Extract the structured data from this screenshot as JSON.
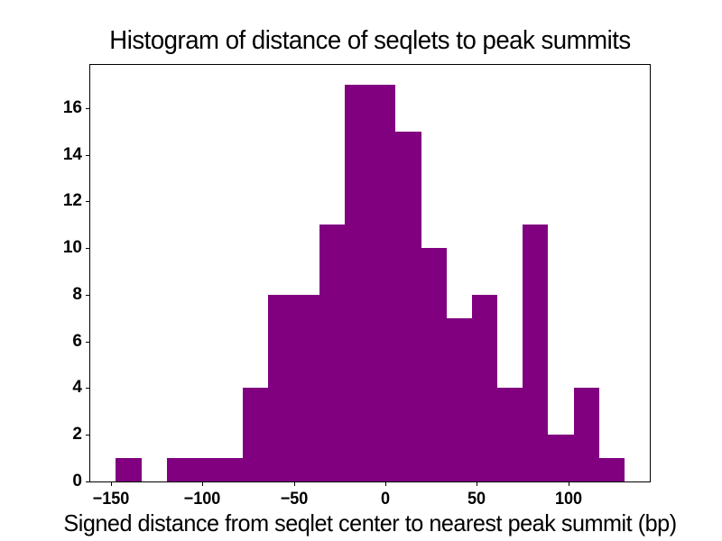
{
  "chart_data": {
    "type": "bar",
    "variant": "histogram",
    "title": "Histogram of distance of seqlets to peak summits",
    "xlabel": "Signed distance from seqlet center to nearest peak summit (bp)",
    "ylabel": "",
    "bar_color": "#800080",
    "axis_color": "#000000",
    "text_color": "#000000",
    "background_color": "#ffffff",
    "grid": false,
    "legend": false,
    "bin_edges": [
      -147.3,
      -133.4,
      -119.5,
      -105.6,
      -91.7,
      -77.8,
      -63.9,
      -50.0,
      -36.1,
      -22.2,
      -8.3,
      5.6,
      19.5,
      33.4,
      47.3,
      61.2,
      75.1,
      89.0,
      102.9,
      116.8,
      130.7
    ],
    "counts": [
      1,
      0,
      1,
      1,
      1,
      4,
      8,
      8,
      11,
      17,
      17,
      15,
      10,
      7,
      8,
      4,
      11,
      2,
      4,
      1
    ],
    "xlim": [
      -161.3,
      144.5
    ],
    "ylim": [
      0,
      17.85
    ],
    "xticks": {
      "values": [
        -150,
        -100,
        -50,
        0,
        50,
        100
      ],
      "labels": [
        "−150",
        "−100",
        "−50",
        "0",
        "50",
        "100"
      ]
    },
    "yticks": {
      "values": [
        0,
        2,
        4,
        6,
        8,
        10,
        12,
        14,
        16
      ],
      "labels": [
        "0",
        "2",
        "4",
        "6",
        "8",
        "10",
        "12",
        "14",
        "16"
      ]
    }
  }
}
